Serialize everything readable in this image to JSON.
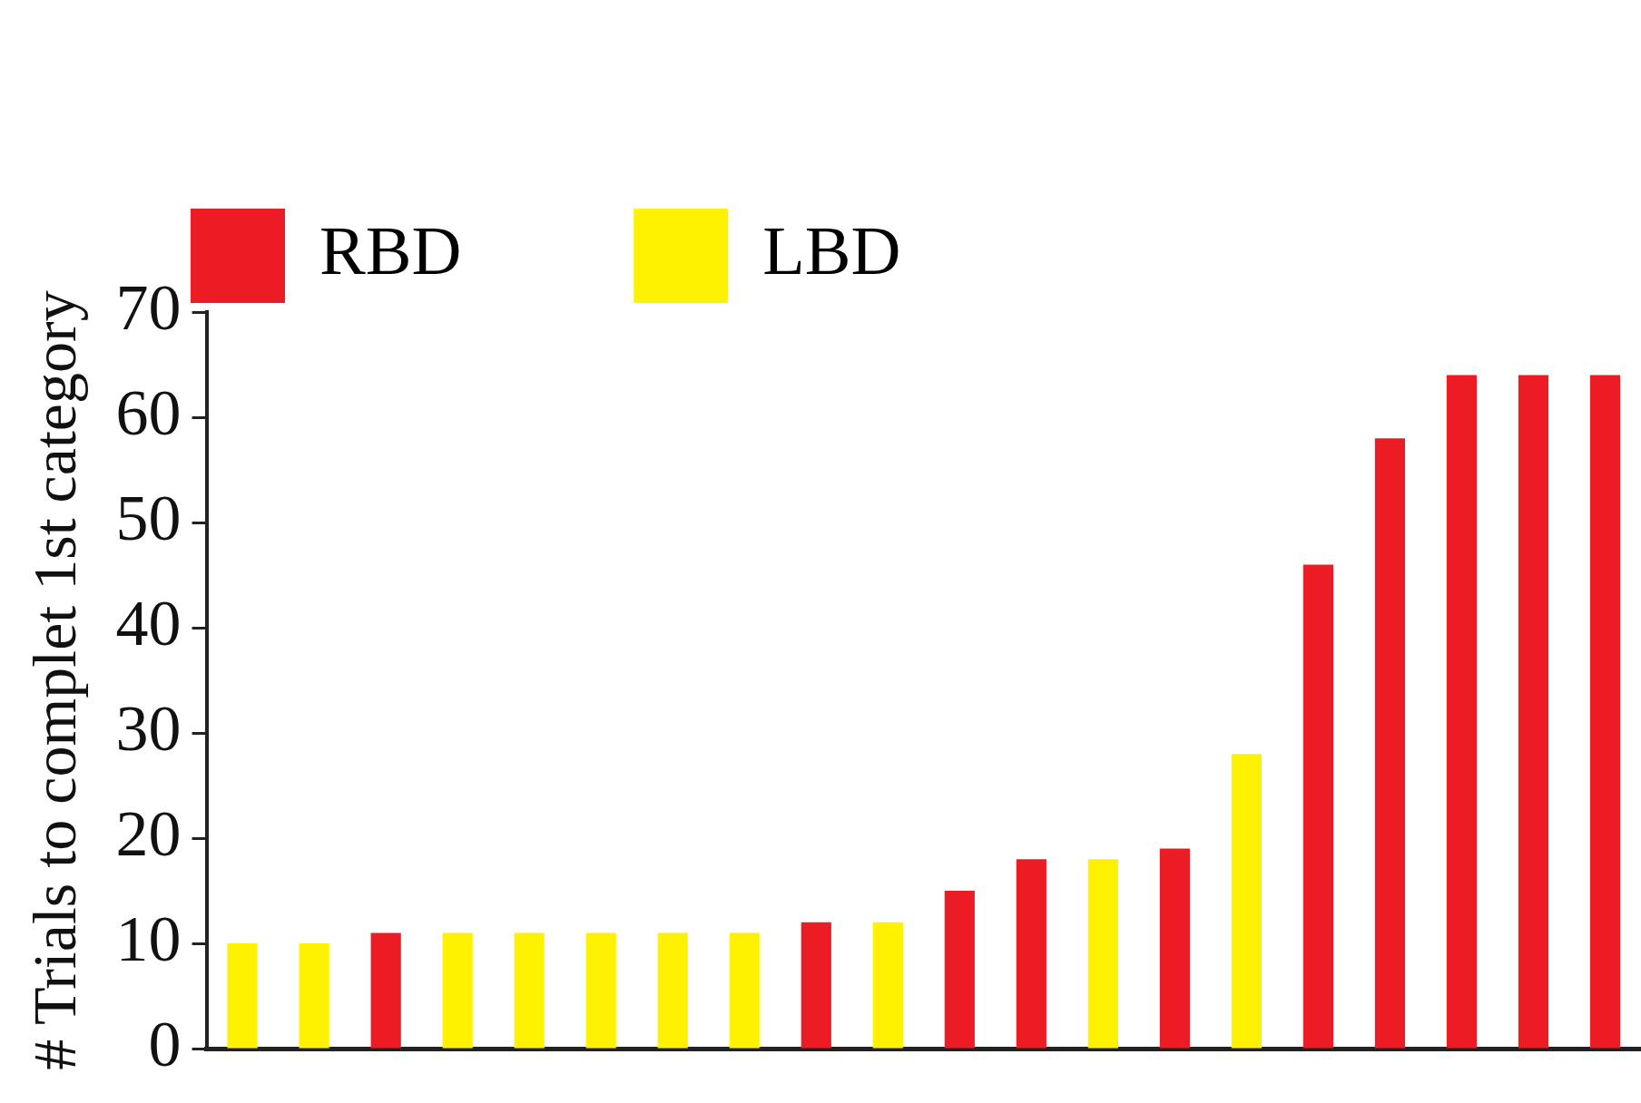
{
  "chart_data": {
    "type": "bar",
    "ylabel": "# Trials to complet 1st category",
    "categories": [
      null,
      null,
      null,
      null,
      null,
      null,
      null,
      null,
      null,
      null,
      null,
      null,
      null,
      null,
      null,
      null,
      null,
      null,
      null,
      null
    ],
    "series": [
      {
        "name": "RBD",
        "color": "#ec1c24",
        "values": [
          null,
          null,
          11,
          null,
          null,
          null,
          null,
          null,
          12,
          null,
          15,
          18,
          null,
          19,
          null,
          46,
          58,
          64,
          64,
          64
        ]
      },
      {
        "name": "LBD",
        "color": "#fff200",
        "values": [
          10,
          10,
          null,
          11,
          11,
          11,
          11,
          11,
          null,
          12,
          null,
          null,
          18,
          null,
          28,
          null,
          null,
          null,
          null,
          null
        ]
      }
    ],
    "ylim": [
      0,
      70
    ],
    "yticks": [
      0,
      10,
      20,
      30,
      40,
      50,
      60,
      70
    ],
    "grid": false,
    "legend": "top",
    "tick_labels": "y"
  }
}
